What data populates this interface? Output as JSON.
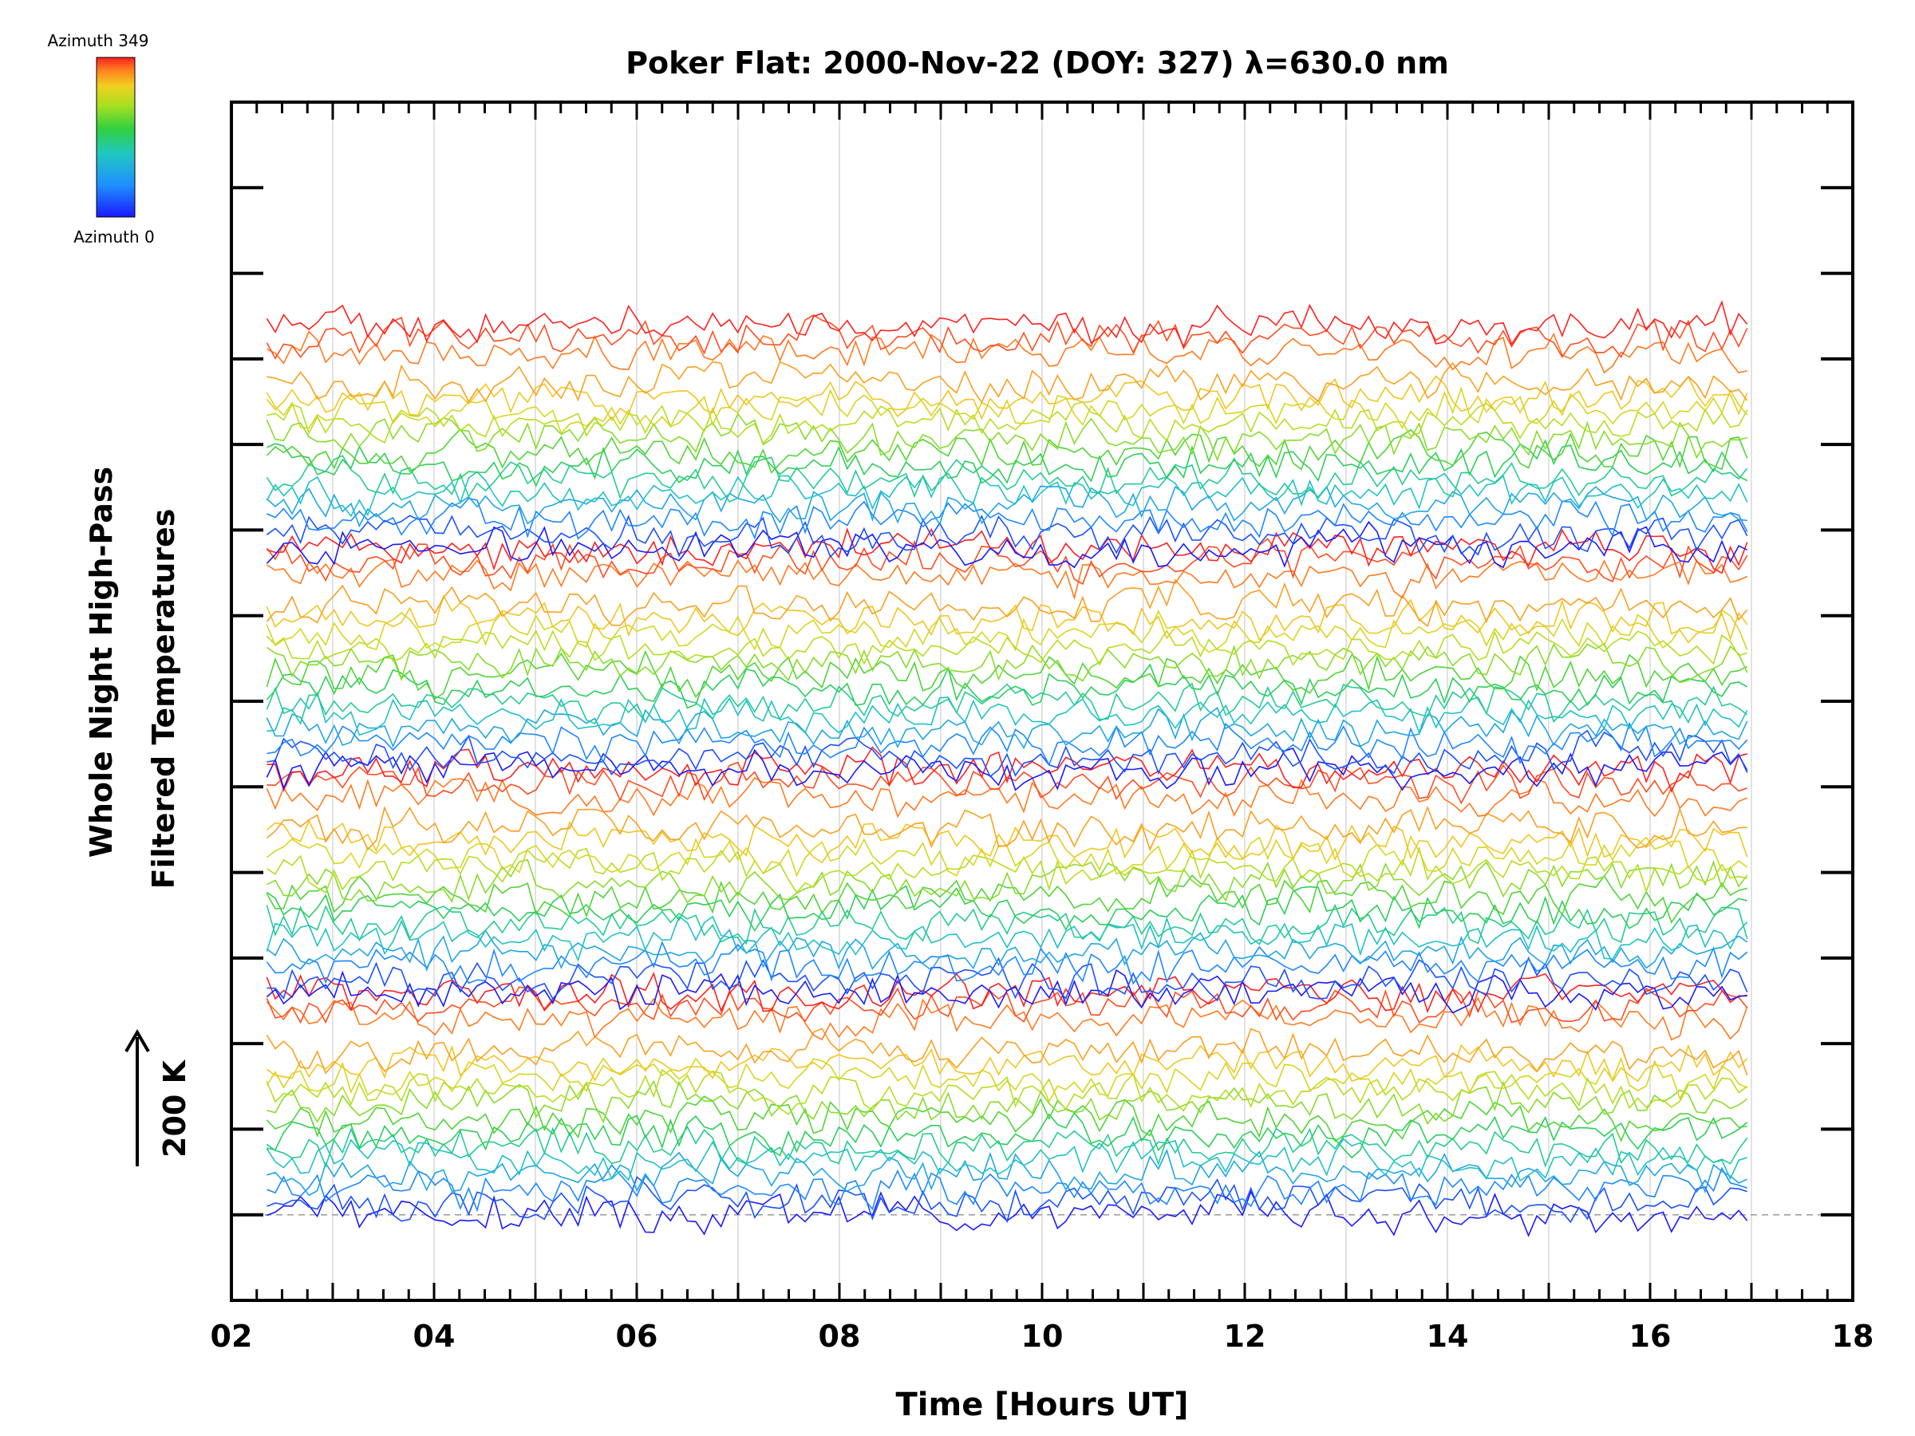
{
  "chart_data": {
    "type": "line",
    "title": "Poker Flat: 2000-Nov-22 (DOY: 327) λ=630.0 nm",
    "xlabel": "Time [Hours UT]",
    "ylabel_line1": "Whole Night High-Pass",
    "ylabel_line2": "Filtered Temperatures",
    "scale_label": "200 K",
    "colorbar": {
      "top_label": "Azimuth 349",
      "bottom_label": "Azimuth 0",
      "colors": [
        "#1a1aff",
        "#1e90ff",
        "#20c8c0",
        "#30d040",
        "#a8e020",
        "#f0d020",
        "#ff8020",
        "#ff2020"
      ]
    },
    "xlim": [
      2,
      18
    ],
    "x_ticks": [
      "02",
      "04",
      "06",
      "08",
      "10",
      "12",
      "14",
      "16",
      "18"
    ],
    "x_data_range": [
      2.35,
      17.0
    ],
    "y_unit": "K",
    "y_offset_step_K": 100,
    "ylim_K": [
      -100,
      1300
    ],
    "baseline_K": 0,
    "series_count": 64,
    "noise_amplitude_K": 22,
    "grid": "vertical lines every 1 hour",
    "legend": "colorbar top-left"
  }
}
